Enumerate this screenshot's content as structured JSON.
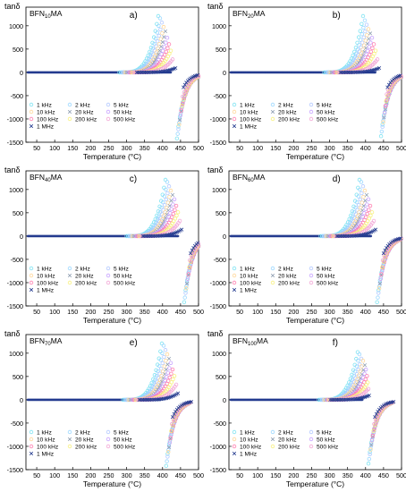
{
  "figure": {
    "ylabel": "tanδ",
    "xlabel": "Temperature (°C)"
  },
  "chart_data": [
    {
      "type": "scatter",
      "panel_label": "a)",
      "sample_label": [
        "BFN",
        "10",
        "MA"
      ],
      "xlabel": "Temperature (°C)",
      "ylabel": "tanδ",
      "xlim": [
        20,
        500
      ],
      "ylim": [
        -1500,
        1400
      ],
      "xticks": [
        50,
        100,
        150,
        200,
        250,
        300,
        350,
        400,
        450,
        500
      ],
      "yticks": [
        -1500,
        -1000,
        -500,
        0,
        500,
        1000
      ],
      "grid": false,
      "legend_position": "bottom-left",
      "series_frequencies": [
        "1 kHz",
        "2 kHz",
        "5 kHz",
        "10 kHz",
        "20 kHz",
        "50 kHz",
        "100 kHz",
        "200 kHz",
        "500 kHz",
        "1 MHz"
      ],
      "positive_peak_temperatures": [
        390,
        395,
        400,
        405,
        410,
        415,
        420,
        425,
        430,
        438
      ],
      "positive_peak_values": [
        1300,
        1250,
        1150,
        1050,
        950,
        800,
        650,
        500,
        300,
        100
      ],
      "negative_region_start": 440,
      "negative_branch_values": [
        -1400,
        -1300,
        -1200,
        -1100,
        -1000,
        -900,
        -800,
        -700,
        -500,
        -300
      ]
    },
    {
      "type": "scatter",
      "panel_label": "b)",
      "sample_label": [
        "BFN",
        "20",
        "MA"
      ],
      "xlabel": "Temperature (°C)",
      "ylabel": "tanδ",
      "xlim": [
        20,
        500
      ],
      "ylim": [
        -1500,
        1400
      ],
      "xticks": [
        50,
        100,
        150,
        200,
        250,
        300,
        350,
        400,
        450,
        500
      ],
      "yticks": [
        -1500,
        -1000,
        -500,
        0,
        500,
        1000
      ],
      "grid": false,
      "legend_position": "bottom-left",
      "series_frequencies": [
        "1 kHz",
        "2 kHz",
        "5 kHz",
        "10 kHz",
        "20 kHz",
        "50 kHz",
        "100 kHz",
        "200 kHz",
        "500 kHz",
        "1 MHz"
      ],
      "positive_peak_temperatures": [
        395,
        400,
        405,
        410,
        415,
        420,
        425,
        430,
        435,
        440
      ],
      "positive_peak_values": [
        1300,
        1200,
        1100,
        1000,
        900,
        800,
        650,
        500,
        300,
        100
      ],
      "negative_region_start": 443,
      "negative_branch_values": [
        -1350,
        -1250,
        -1150,
        -1050,
        -950,
        -850,
        -700,
        -600,
        -450,
        -300
      ]
    },
    {
      "type": "scatter",
      "panel_label": "c)",
      "sample_label": [
        "BFN",
        "40",
        "MA"
      ],
      "xlabel": "Temperature (°C)",
      "ylabel": "tanδ",
      "xlim": [
        20,
        500
      ],
      "ylim": [
        -1500,
        1400
      ],
      "xticks": [
        50,
        100,
        150,
        200,
        250,
        300,
        350,
        400,
        450,
        500
      ],
      "yticks": [
        -1500,
        -1000,
        -500,
        0,
        500,
        1000
      ],
      "grid": false,
      "legend_position": "bottom-left",
      "series_frequencies": [
        "1 kHz",
        "2 kHz",
        "5 kHz",
        "10 kHz",
        "20 kHz",
        "50 kHz",
        "100 kHz",
        "200 kHz",
        "500 kHz",
        "1 MHz"
      ],
      "positive_peak_temperatures": [
        410,
        415,
        420,
        425,
        430,
        435,
        440,
        445,
        450,
        455
      ],
      "positive_peak_values": [
        1300,
        1250,
        1150,
        1050,
        950,
        850,
        700,
        550,
        350,
        150
      ],
      "negative_region_start": 460,
      "negative_branch_values": [
        -1400,
        -1300,
        -1200,
        -1100,
        -1000,
        -900,
        -800,
        -650,
        -500,
        -350
      ]
    },
    {
      "type": "scatter",
      "panel_label": "d)",
      "sample_label": [
        "BFN",
        "60",
        "MA"
      ],
      "xlabel": "Temperature (°C)",
      "ylabel": "tanδ",
      "xlim": [
        20,
        500
      ],
      "ylim": [
        -1500,
        1400
      ],
      "xticks": [
        50,
        100,
        150,
        200,
        250,
        300,
        350,
        400,
        450,
        500
      ],
      "yticks": [
        -1500,
        -1000,
        -500,
        0,
        500,
        1000
      ],
      "grid": false,
      "legend_position": "bottom-left",
      "series_frequencies": [
        "1 kHz",
        "2 kHz",
        "5 kHz",
        "10 kHz",
        "20 kHz",
        "50 kHz",
        "100 kHz",
        "200 kHz",
        "500 kHz",
        "1 MHz"
      ],
      "positive_peak_temperatures": [
        385,
        390,
        395,
        400,
        405,
        410,
        415,
        420,
        425,
        430
      ],
      "positive_peak_values": [
        1300,
        1250,
        1150,
        1050,
        950,
        850,
        700,
        550,
        350,
        150
      ],
      "negative_region_start": 432,
      "negative_branch_values": [
        -1400,
        -1300,
        -1200,
        -1100,
        -1000,
        -900,
        -800,
        -650,
        -500,
        -350
      ]
    },
    {
      "type": "scatter",
      "panel_label": "e)",
      "sample_label": [
        "BFN",
        "70",
        "MA"
      ],
      "xlabel": "Temperature (°C)",
      "ylabel": "tanδ",
      "xlim": [
        20,
        500
      ],
      "ylim": [
        -1500,
        1400
      ],
      "xticks": [
        50,
        100,
        150,
        200,
        250,
        300,
        350,
        400,
        450,
        500
      ],
      "yticks": [
        -1500,
        -1000,
        -500,
        0,
        500,
        1000
      ],
      "grid": false,
      "legend_position": "bottom-left",
      "series_frequencies": [
        "1 kHz",
        "2 kHz",
        "5 kHz",
        "10 kHz",
        "20 kHz",
        "50 kHz",
        "100 kHz",
        "200 kHz",
        "500 kHz",
        "1 MHz"
      ],
      "positive_peak_temperatures": [
        400,
        405,
        410,
        415,
        420,
        425,
        430,
        435,
        440,
        445
      ],
      "positive_peak_values": [
        1300,
        1250,
        1150,
        1050,
        950,
        850,
        700,
        550,
        350,
        150
      ],
      "negative_region_start": 410,
      "negative_branch_values": [
        -1400,
        -1300,
        -1200,
        -1100,
        -1000,
        -900,
        -800,
        -650,
        -500,
        -350
      ]
    },
    {
      "type": "scatter",
      "panel_label": "f)",
      "sample_label": [
        "BFN",
        "100",
        "MA"
      ],
      "xlabel": "Temperature (°C)",
      "ylabel": "tanδ",
      "xlim": [
        20,
        500
      ],
      "ylim": [
        -1500,
        1400
      ],
      "xticks": [
        50,
        100,
        150,
        200,
        250,
        300,
        350,
        400,
        450,
        500
      ],
      "yticks": [
        -1500,
        -1000,
        -500,
        0,
        500,
        1000
      ],
      "grid": false,
      "legend_position": "bottom-left",
      "series_frequencies": [
        "1 kHz",
        "2 kHz",
        "5 kHz",
        "10 kHz",
        "20 kHz",
        "50 kHz",
        "100 kHz",
        "200 kHz",
        "500 kHz",
        "1 MHz"
      ],
      "positive_peak_temperatures": [
        380,
        385,
        390,
        395,
        400,
        403,
        406,
        408,
        410,
        412
      ],
      "positive_peak_values": [
        1100,
        1050,
        950,
        900,
        800,
        700,
        550,
        400,
        250,
        100
      ],
      "negative_region_start": 408,
      "negative_branch_values": [
        -1350,
        -1250,
        -1150,
        -1050,
        -950,
        -850,
        -750,
        -650,
        -500,
        -350
      ]
    }
  ],
  "legend": [
    {
      "label": "1 kHz",
      "color": "#7fe3f2",
      "marker": "circle"
    },
    {
      "label": "2 kHz",
      "color": "#9ad7ff",
      "marker": "circle"
    },
    {
      "label": "5 kHz",
      "color": "#b2c8ff",
      "marker": "circle"
    },
    {
      "label": "10 kHz",
      "color": "#ffd79a",
      "marker": "circle"
    },
    {
      "label": "20 kHz",
      "color": "#8f9fb2",
      "marker": "cross"
    },
    {
      "label": "50 kHz",
      "color": "#c7a3ff",
      "marker": "circle"
    },
    {
      "label": "100 kHz",
      "color": "#ff7fb0",
      "marker": "circle"
    },
    {
      "label": "200 kHz",
      "color": "#f7f07f",
      "marker": "circle"
    },
    {
      "label": "500 kHz",
      "color": "#f2a6d6",
      "marker": "circle"
    },
    {
      "label": "1 MHz",
      "color": "#243b8f",
      "marker": "cross"
    }
  ]
}
